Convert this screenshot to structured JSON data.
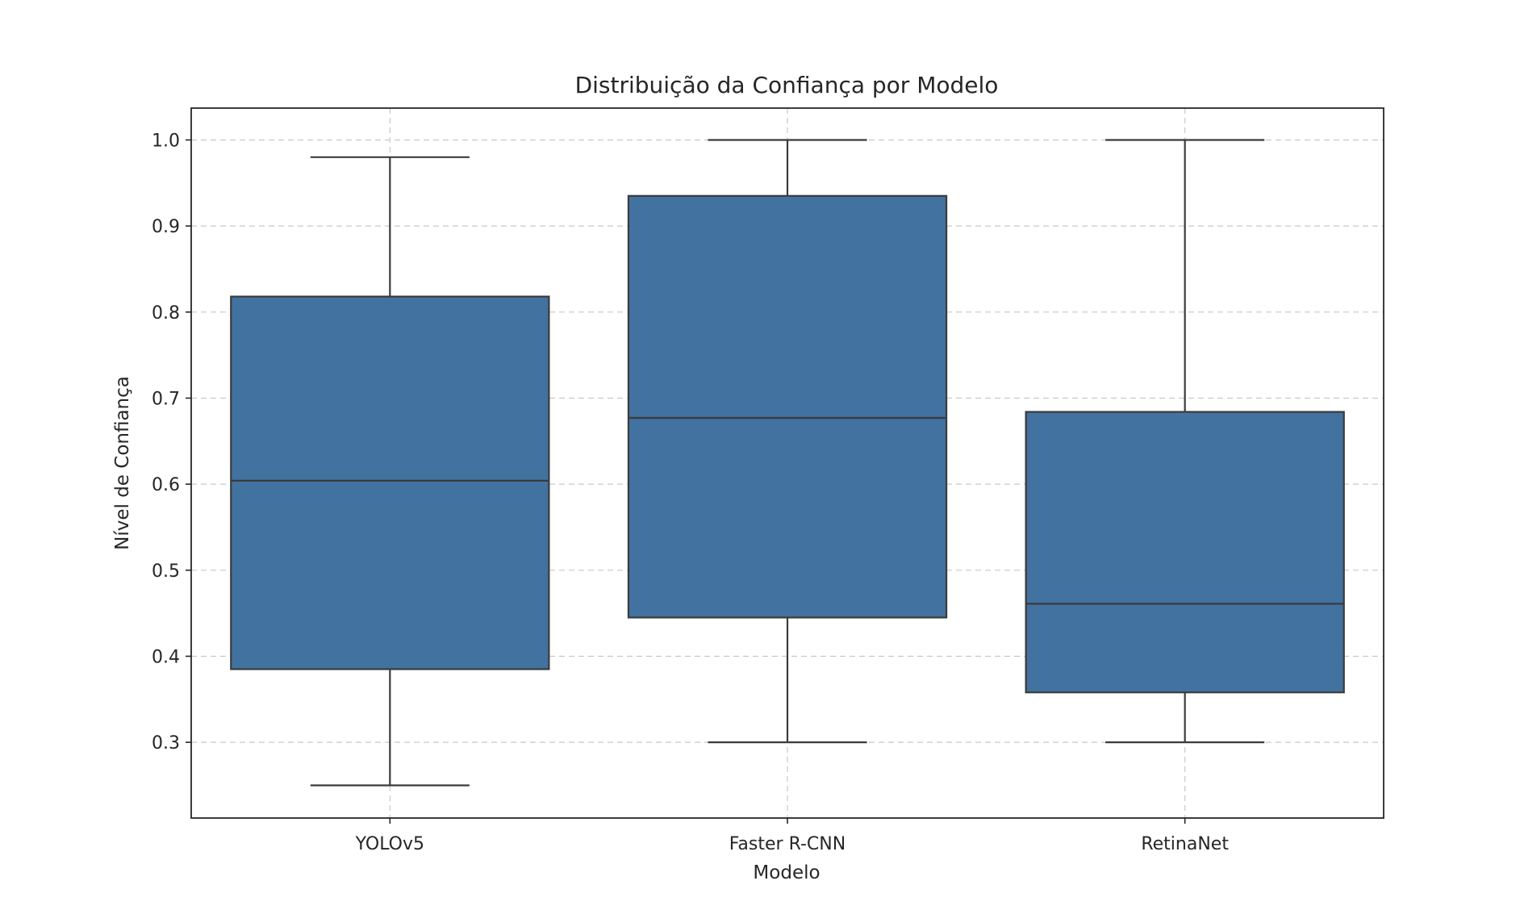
{
  "chart_data": {
    "type": "box",
    "title": "Distribuição da Confiança por Modelo",
    "xlabel": "Modelo",
    "ylabel": "Nível de Confiança",
    "categories": [
      "YOLOv5",
      "Faster R-CNN",
      "RetinaNet"
    ],
    "y_ticks": [
      0.3,
      0.4,
      0.5,
      0.6,
      0.7,
      0.8,
      0.9,
      1.0
    ],
    "y_tick_labels": [
      "0.3",
      "0.4",
      "0.5",
      "0.6",
      "0.7",
      "0.8",
      "0.9",
      "1.0"
    ],
    "ylim": [
      0.212,
      1.037
    ],
    "grid": true,
    "box_color": "#4272a0",
    "boxes": [
      {
        "category": "YOLOv5",
        "whisker_low": 0.25,
        "q1": 0.385,
        "median": 0.604,
        "q3": 0.818,
        "whisker_high": 0.98
      },
      {
        "category": "Faster R-CNN",
        "whisker_low": 0.3,
        "q1": 0.445,
        "median": 0.677,
        "q3": 0.935,
        "whisker_high": 1.0
      },
      {
        "category": "RetinaNet",
        "whisker_low": 0.3,
        "q1": 0.358,
        "median": 0.461,
        "q3": 0.684,
        "whisker_high": 1.0
      }
    ]
  }
}
